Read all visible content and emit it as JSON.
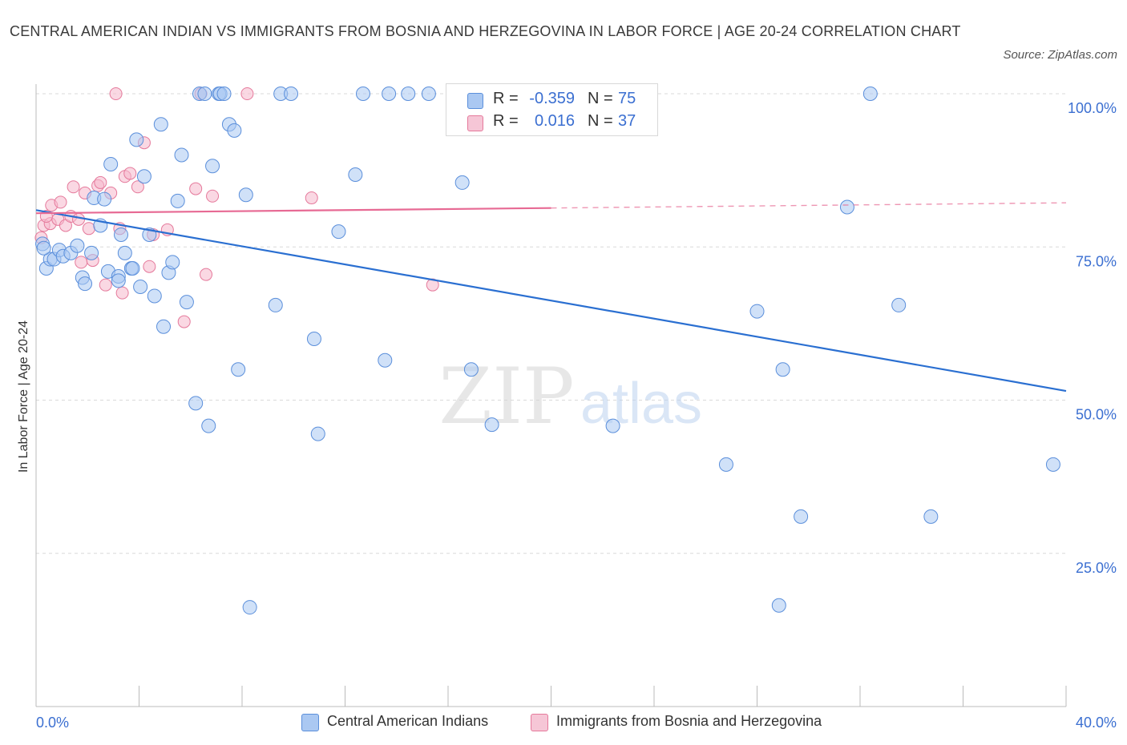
{
  "title": "CENTRAL AMERICAN INDIAN VS IMMIGRANTS FROM BOSNIA AND HERZEGOVINA IN LABOR FORCE | AGE 20-24 CORRELATION CHART",
  "source": "Source: ZipAtlas.com",
  "watermark": {
    "zip": "ZIP",
    "atlas": "atlas"
  },
  "legend_top": [
    {
      "r_label": "R =",
      "r_value": "-0.359",
      "n_label": "N =",
      "n_value": "75"
    },
    {
      "r_label": "R =",
      "r_value": "0.016",
      "n_label": "N =",
      "n_value": "37"
    }
  ],
  "colors": {
    "blue_fill": "#aac8f2",
    "blue_stroke": "#5b8fdb",
    "blue_line": "#2a6fd1",
    "pink_fill": "#f6b8cc",
    "pink_stroke": "#e5799b",
    "pink_line": "#e76a94",
    "grid": "#d9d9d9",
    "tick_text": "#3b6fd1"
  },
  "chart_data": {
    "type": "scatter",
    "title": "CENTRAL AMERICAN INDIAN VS IMMIGRANTS FROM BOSNIA AND HERZEGOVINA IN LABOR FORCE | AGE 20-24 CORRELATION CHART",
    "xlabel": "",
    "ylabel": "In Labor Force | Age 20-24",
    "xlim": [
      0,
      40
    ],
    "ylim": [
      0,
      100
    ],
    "x_tick_labels": [
      {
        "value": 0,
        "label": "0.0%"
      },
      {
        "value": 40,
        "label": "40.0%"
      }
    ],
    "y_tick_labels": [
      {
        "value": 100,
        "label": "100.0%"
      },
      {
        "value": 75,
        "label": "75.0%"
      },
      {
        "value": 50,
        "label": "50.0%"
      },
      {
        "value": 25,
        "label": "25.0%"
      }
    ],
    "series": [
      {
        "name": "Central American Indians",
        "r": -0.359,
        "n": 75,
        "trend": {
          "x": [
            0,
            40
          ],
          "y": [
            81.0,
            51.5
          ],
          "dashed_from": null
        },
        "points": [
          [
            0.25,
            75.5
          ],
          [
            0.4,
            71.5
          ],
          [
            0.55,
            73.0
          ],
          [
            0.7,
            73.0
          ],
          [
            0.9,
            74.5
          ],
          [
            1.05,
            73.5
          ],
          [
            1.35,
            74.0
          ],
          [
            1.6,
            75.2
          ],
          [
            1.8,
            70.0
          ],
          [
            1.9,
            69.0
          ],
          [
            2.15,
            74.0
          ],
          [
            2.25,
            83.0
          ],
          [
            2.5,
            78.5
          ],
          [
            2.65,
            82.8
          ],
          [
            2.8,
            71.0
          ],
          [
            2.9,
            88.5
          ],
          [
            3.2,
            70.2
          ],
          [
            3.3,
            77.0
          ],
          [
            3.45,
            74.0
          ],
          [
            3.7,
            71.5
          ],
          [
            3.75,
            71.5
          ],
          [
            3.9,
            92.5
          ],
          [
            4.05,
            68.5
          ],
          [
            4.2,
            86.5
          ],
          [
            4.4,
            77.0
          ],
          [
            4.6,
            67.0
          ],
          [
            4.85,
            95.0
          ],
          [
            4.95,
            62.0
          ],
          [
            5.15,
            70.8
          ],
          [
            5.3,
            72.5
          ],
          [
            5.5,
            82.5
          ],
          [
            5.65,
            90.0
          ],
          [
            5.85,
            66.0
          ],
          [
            6.2,
            49.5
          ],
          [
            6.35,
            100
          ],
          [
            6.55,
            100
          ],
          [
            6.7,
            45.8
          ],
          [
            6.85,
            88.2
          ],
          [
            7.1,
            100
          ],
          [
            7.15,
            100
          ],
          [
            7.3,
            100
          ],
          [
            7.5,
            95.0
          ],
          [
            7.7,
            94.0
          ],
          [
            7.85,
            55.0
          ],
          [
            8.15,
            83.5
          ],
          [
            9.3,
            65.5
          ],
          [
            9.5,
            100
          ],
          [
            9.9,
            100
          ],
          [
            10.8,
            60.0
          ],
          [
            10.95,
            44.5
          ],
          [
            11.75,
            77.5
          ],
          [
            12.4,
            86.8
          ],
          [
            12.7,
            100
          ],
          [
            13.55,
            56.5
          ],
          [
            13.7,
            100
          ],
          [
            14.45,
            100
          ],
          [
            15.25,
            100
          ],
          [
            16.55,
            85.5
          ],
          [
            16.9,
            55.0
          ],
          [
            17.7,
            46.0
          ],
          [
            19.0,
            100
          ],
          [
            22.4,
            45.8
          ],
          [
            26.8,
            39.5
          ],
          [
            28.0,
            64.5
          ],
          [
            28.85,
            16.5
          ],
          [
            29.0,
            55.0
          ],
          [
            29.7,
            31.0
          ],
          [
            31.5,
            81.5
          ],
          [
            32.4,
            100
          ],
          [
            33.5,
            65.5
          ],
          [
            34.75,
            31.0
          ],
          [
            39.5,
            39.5
          ],
          [
            3.2,
            69.5
          ],
          [
            8.3,
            16.2
          ],
          [
            0.3,
            74.8
          ]
        ]
      },
      {
        "name": "Immigrants from Bosnia and Herzegovina",
        "r": 0.016,
        "n": 37,
        "trend": {
          "x": [
            0,
            40
          ],
          "y": [
            80.5,
            82.2
          ],
          "dashed_from": 20
        },
        "points": [
          [
            0.2,
            76.5
          ],
          [
            0.3,
            78.5
          ],
          [
            0.55,
            78.8
          ],
          [
            0.6,
            81.8
          ],
          [
            0.85,
            79.5
          ],
          [
            0.95,
            82.3
          ],
          [
            1.15,
            78.5
          ],
          [
            1.35,
            80.0
          ],
          [
            1.45,
            84.8
          ],
          [
            1.65,
            79.5
          ],
          [
            1.75,
            72.5
          ],
          [
            1.9,
            83.8
          ],
          [
            2.05,
            78.0
          ],
          [
            2.2,
            72.8
          ],
          [
            2.4,
            85.0
          ],
          [
            2.5,
            85.5
          ],
          [
            2.7,
            68.8
          ],
          [
            2.9,
            83.8
          ],
          [
            3.1,
            100
          ],
          [
            3.25,
            78.0
          ],
          [
            3.35,
            67.5
          ],
          [
            3.45,
            86.5
          ],
          [
            3.65,
            87.0
          ],
          [
            3.95,
            84.8
          ],
          [
            4.2,
            92.0
          ],
          [
            4.4,
            71.8
          ],
          [
            4.55,
            77.0
          ],
          [
            5.1,
            77.8
          ],
          [
            5.75,
            62.8
          ],
          [
            6.2,
            84.5
          ],
          [
            6.4,
            100
          ],
          [
            6.6,
            70.5
          ],
          [
            6.85,
            83.3
          ],
          [
            8.2,
            100
          ],
          [
            10.7,
            83.0
          ],
          [
            15.4,
            68.8
          ],
          [
            0.4,
            80.0
          ]
        ]
      }
    ]
  }
}
